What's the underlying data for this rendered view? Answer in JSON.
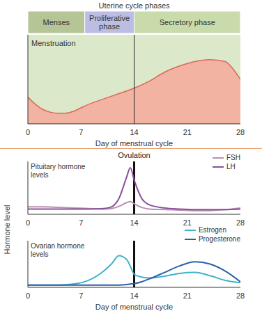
{
  "chart_data": [
    {
      "type": "area",
      "title": "Uterine cycle phases",
      "phases": [
        {
          "label": "Menses",
          "start": 0,
          "end": 7.5,
          "color": "#b5c596"
        },
        {
          "label": "Proliferative phase",
          "start": 7.5,
          "end": 14,
          "color": "#bcbde3"
        },
        {
          "label": "Secretory phase",
          "start": 14,
          "end": 28,
          "color": "#c9dbab"
        }
      ],
      "annotations": [
        {
          "text": "Menstruation"
        }
      ],
      "x": [
        0,
        1,
        2,
        3,
        4,
        5,
        6,
        7,
        8,
        10,
        12,
        14,
        16,
        18,
        20,
        22,
        24,
        26,
        27,
        28
      ],
      "values": [
        30,
        22,
        16,
        13,
        12,
        12,
        14,
        18,
        22,
        28,
        34,
        40,
        48,
        58,
        65,
        70,
        72,
        70,
        62,
        50
      ],
      "color": "#f2b3a3",
      "xlim": [
        0,
        28
      ],
      "xticks": [
        0,
        7,
        14,
        21,
        28
      ],
      "xlabel": "Day of menstrual cycle",
      "ylim": [
        0,
        100
      ],
      "yticks": [],
      "tick_labels": "x"
    },
    {
      "type": "line",
      "title": "Pituitary hormone levels",
      "x": [
        0,
        2,
        4,
        6,
        8,
        10,
        11,
        12,
        13,
        13.5,
        14,
        15,
        16,
        18,
        20,
        22,
        24,
        26,
        28
      ],
      "series": [
        {
          "name": "FSH",
          "color": "#b98fb2",
          "values": [
            14,
            14,
            13,
            12,
            11,
            10,
            11,
            15,
            22,
            24,
            20,
            13,
            10,
            9,
            8,
            7,
            7,
            9,
            12
          ]
        },
        {
          "name": "LH",
          "color": "#8b4f9c",
          "values": [
            10,
            10,
            10,
            10,
            10,
            11,
            14,
            30,
            70,
            88,
            65,
            30,
            18,
            12,
            10,
            9,
            9,
            9,
            10
          ]
        }
      ],
      "annotations": [
        {
          "text": "Ovulation",
          "x": 14
        }
      ],
      "xlim": [
        0,
        28
      ],
      "xticks": [
        0,
        7,
        14,
        21,
        28
      ],
      "ylim": [
        0,
        100
      ],
      "yticks": [],
      "tick_labels": "x",
      "legend": "top right"
    },
    {
      "type": "line",
      "title": "Ovarian hormone levels",
      "x": [
        0,
        2,
        4,
        6,
        8,
        10,
        11,
        12,
        13,
        13.5,
        14,
        15,
        16,
        18,
        20,
        22,
        24,
        26,
        28
      ],
      "series": [
        {
          "name": "Estrogen",
          "color": "#3fb2cb",
          "values": [
            5,
            5,
            5,
            7,
            15,
            35,
            50,
            68,
            60,
            45,
            28,
            22,
            20,
            24,
            30,
            32,
            25,
            15,
            10
          ]
        },
        {
          "name": "Progesterone",
          "color": "#2c5fa8",
          "values": [
            5,
            5,
            5,
            5,
            5,
            5,
            5,
            5,
            6,
            7,
            8,
            12,
            18,
            32,
            46,
            55,
            50,
            35,
            12
          ]
        }
      ],
      "annotations": [
        {
          "x": 14
        }
      ],
      "xlim": [
        0,
        28
      ],
      "xticks": [
        0,
        7,
        14,
        21,
        28
      ],
      "xlabel": "Day of menstrual cycle",
      "ylabel": "Hormone level",
      "ylim": [
        0,
        100
      ],
      "yticks": [],
      "tick_labels": "x",
      "legend": "top right"
    }
  ]
}
